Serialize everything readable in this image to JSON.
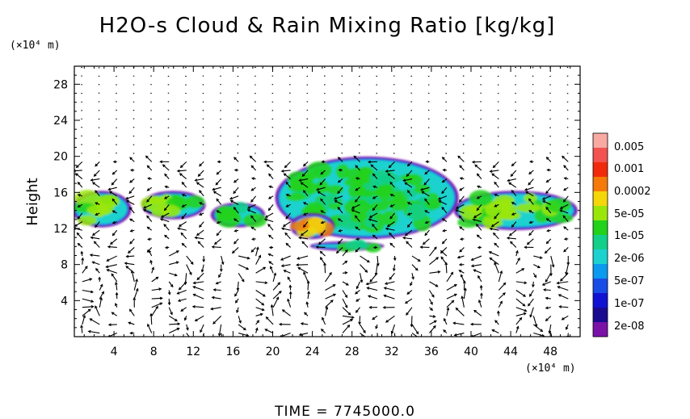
{
  "chart_data": {
    "type": "heatmap",
    "title": "H2O-s Cloud & Rain Mixing Ratio [kg/kg]",
    "ylabel": "Height",
    "x_unit": "(×10⁴ m)",
    "y_unit": "(×10⁴ m)",
    "xlim": [
      0,
      51
    ],
    "ylim": [
      0,
      30
    ],
    "x_ticks": [
      "4",
      "8",
      "12",
      "16",
      "20",
      "24",
      "28",
      "32",
      "36",
      "40",
      "44",
      "48"
    ],
    "y_ticks": [
      "4",
      "8",
      "12",
      "16",
      "20",
      "24",
      "28"
    ],
    "colorbar": {
      "labels": [
        "0.005",
        "0.001",
        "0.0002",
        "5e-05",
        "1e-05",
        "2e-06",
        "5e-07",
        "1e-07",
        "2e-08"
      ],
      "colors": [
        "#f7a9a2",
        "#f25350",
        "#f22a0c",
        "#f57a0a",
        "#f5d60a",
        "#9be60a",
        "#22d21a",
        "#12cf8a",
        "#1cd2cf",
        "#0a9af0",
        "#1a4ce6",
        "#1212d2",
        "#1a0a8f",
        "#7a12a8"
      ]
    },
    "cloud_regions": [
      {
        "x": [
          0,
          5.5
        ],
        "y": [
          12.3,
          16.0
        ],
        "level": "5e-05"
      },
      {
        "x": [
          7.0,
          13.0
        ],
        "y": [
          13.2,
          16.0
        ],
        "level": "5e-05"
      },
      {
        "x": [
          14.0,
          19.0
        ],
        "y": [
          12.3,
          14.7
        ],
        "level": "1e-05"
      },
      {
        "x": [
          20.5,
          38.5
        ],
        "y": [
          11.0,
          19.8
        ],
        "level": "1e-05"
      },
      {
        "x": [
          22.0,
          26.0
        ],
        "y": [
          11.0,
          13.5
        ],
        "level": "0.0002"
      },
      {
        "x": [
          38.5,
          50.5
        ],
        "y": [
          12.0,
          16.0
        ],
        "level": "5e-05"
      },
      {
        "x": [
          24.0,
          31.0
        ],
        "y": [
          9.7,
          10.4
        ],
        "level": "1e-05"
      }
    ],
    "vector_field": "wind vectors on regular grid"
  },
  "footer": {
    "time": "TIME = 7745000.0"
  }
}
